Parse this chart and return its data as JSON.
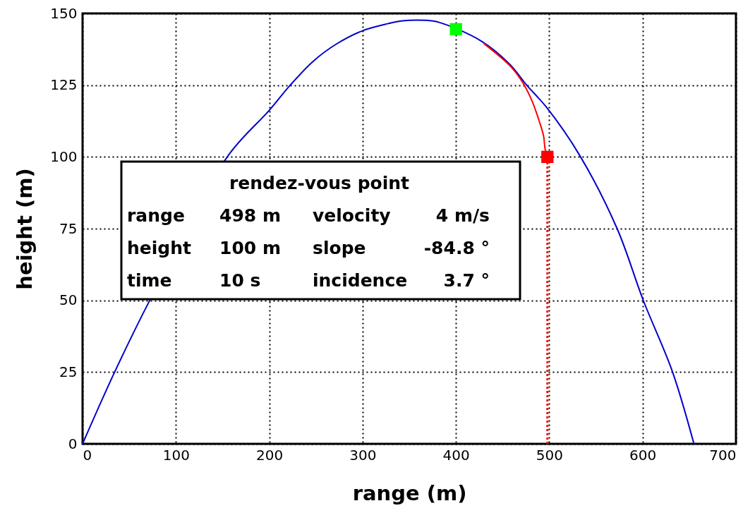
{
  "chart_data": {
    "type": "line",
    "xlabel": "range (m)",
    "ylabel": "height (m)",
    "xlim": [
      0,
      700
    ],
    "xticks": [
      0,
      100,
      200,
      300,
      400,
      500,
      600,
      700
    ],
    "ylim": [
      0,
      150
    ],
    "yticks": [
      0,
      25,
      50,
      75,
      100,
      125,
      150
    ],
    "grid": true,
    "marker": "none",
    "line_style": "solid",
    "series": [
      {
        "color": "#0000cc",
        "x": [
          0,
          34.5,
          71.5,
          155,
          200,
          222.5,
          247,
          271.8,
          299.5,
          327,
          342.7,
          366.7,
          381.8,
          427,
          457.6,
          475.8,
          497,
          533,
          572.7,
          600.6,
          631.8,
          655
        ],
        "values": [
          0,
          25.1,
          49.7,
          100,
          116.2,
          125,
          133.3,
          139.3,
          143.9,
          146.4,
          147.4,
          147.6,
          146.9,
          140.4,
          132.3,
          125,
          117.3,
          100.3,
          75,
          50.1,
          25.3,
          0
        ]
      },
      {
        "color": "#ff0000",
        "x": [
          430.3,
          445.5,
          460.6,
          472.7,
          481.8,
          489.4,
          493.9,
          495.5,
          498
        ],
        "values": [
          139.4,
          135.4,
          130.8,
          125.3,
          119.3,
          112.3,
          107.3,
          102.8,
          100
        ]
      },
      {
        "color": "#ff0000",
        "line_style": "dotted",
        "x": [
          498,
          498
        ],
        "values": [
          0,
          100
        ]
      },
      {
        "type": "scatter",
        "color": "#00ff00",
        "marker": "square",
        "x": [
          400
        ],
        "values": [
          144.5
        ]
      },
      {
        "type": "scatter",
        "color": "#ff0000",
        "marker": "square",
        "x": [
          498
        ],
        "values": [
          100
        ]
      }
    ],
    "annotations": [
      "rendez-vous point",
      "range",
      "498 m",
      "velocity",
      "4 m/s",
      "height",
      "100 m",
      "slope",
      "-84.8 °",
      "time",
      "10 s",
      "incidence",
      "3.7 °"
    ]
  }
}
